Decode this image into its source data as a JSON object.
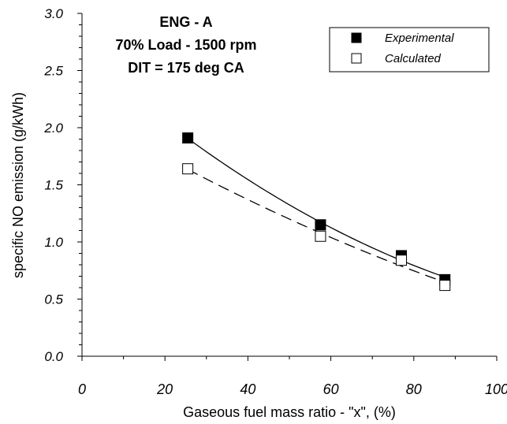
{
  "chart_data": {
    "type": "scatter",
    "title_lines": [
      "ENG - A",
      "70% Load - 1500 rpm",
      "DIT = 175 deg CA"
    ],
    "xlabel": "Gaseous fuel mass ratio - \"x\", (%)",
    "ylabel": "specific NO emission (g/kWh)",
    "xlim": [
      0,
      100
    ],
    "ylim": [
      0.0,
      3.0
    ],
    "x_ticks": [
      "0",
      "20",
      "40",
      "60",
      "80",
      "100"
    ],
    "y_ticks": [
      "0.0",
      "0.5",
      "1.0",
      "1.5",
      "2.0",
      "2.5",
      "3.0"
    ],
    "grid": false,
    "legend_position": "top-right",
    "series": [
      {
        "name": "Experimental",
        "marker": "filled-square",
        "trend": "solid",
        "x": [
          25.5,
          57.5,
          77.0,
          87.5
        ],
        "y": [
          1.91,
          1.15,
          0.88,
          0.67
        ]
      },
      {
        "name": "Calculated",
        "marker": "open-square",
        "trend": "dashed",
        "x": [
          25.5,
          57.5,
          77.0,
          87.5
        ],
        "y": [
          1.64,
          1.05,
          0.84,
          0.62
        ]
      }
    ]
  }
}
